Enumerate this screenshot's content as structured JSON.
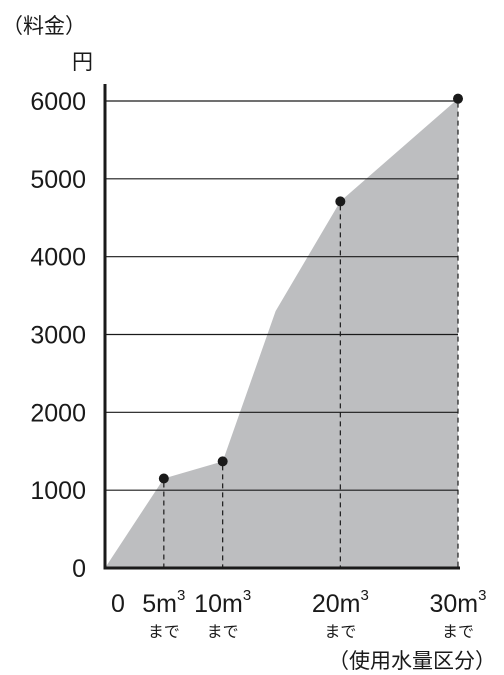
{
  "chart_data": {
    "type": "area",
    "ylabel": "（料金）",
    "yunit": "円",
    "xlabel": "（使用水量区分）",
    "ylim": [
      0,
      6000
    ],
    "yticks": [
      0,
      1000,
      2000,
      3000,
      4000,
      5000,
      6000
    ],
    "x": [
      0,
      5,
      10,
      20,
      30
    ],
    "xticks": [
      {
        "main": "0",
        "sup": "",
        "sub": ""
      },
      {
        "main": "5m",
        "sup": "3",
        "sub": "まで"
      },
      {
        "main": "10m",
        "sup": "3",
        "sub": "まで"
      },
      {
        "main": "20m",
        "sup": "3",
        "sub": "まで"
      },
      {
        "main": "30m",
        "sup": "3",
        "sub": "まで"
      }
    ],
    "points": [
      {
        "x": 5,
        "y": 1150
      },
      {
        "x": 10,
        "y": 1370
      },
      {
        "x": 20,
        "y": 4710
      },
      {
        "x": 30,
        "y": 6030
      }
    ],
    "area_path": [
      {
        "x": 0,
        "y": 0
      },
      {
        "x": 5,
        "y": 1150
      },
      {
        "x": 10,
        "y": 1370
      },
      {
        "x": 14.5,
        "y": 3300
      },
      {
        "x": 20,
        "y": 4710
      },
      {
        "x": 30,
        "y": 6030
      },
      {
        "x": 30,
        "y": 0
      }
    ],
    "grid": true,
    "colors": {
      "area": "#bdbec0",
      "axis": "#1a1a1a",
      "grid": "#1a1a1a",
      "point": "#1a1a1a"
    }
  }
}
